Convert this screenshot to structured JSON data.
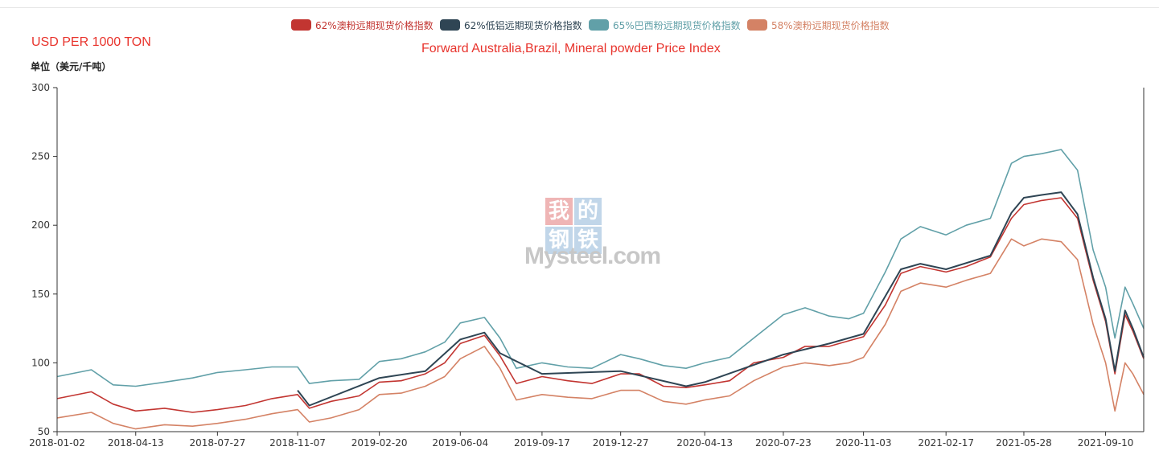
{
  "chart_data": {
    "type": "line",
    "title": "Forward Australia,Brazil, Mineral powder Price Index",
    "unit_en": "USD PER 1000 TON",
    "ylabel": "单位（美元/千吨）",
    "ylim": [
      50,
      300
    ],
    "yticks": [
      "300",
      "250",
      "200",
      "150",
      "100",
      "50"
    ],
    "x_tick_labels": [
      "2018-01-02",
      "2018-04-13",
      "2018-07-27",
      "2018-11-07",
      "2019-02-20",
      "2019-06-04",
      "2019-09-17",
      "2019-12-27",
      "2020-04-13",
      "2020-07-23",
      "2020-11-03",
      "2021-02-17",
      "2021-05-28",
      "2021-09-10"
    ],
    "x_range": [
      "2018-01-02",
      "2021-10-29"
    ],
    "grid": false,
    "legend_position": "top-center",
    "watermark": {
      "line1": "我的",
      "line2": "钢铁",
      "brand": "Mysteel.com"
    },
    "series": [
      {
        "name": "62%澳粉远期现货价格指数",
        "color": "#c23531",
        "x": [
          "2018-01-02",
          "2018-02-15",
          "2018-03-15",
          "2018-04-13",
          "2018-05-20",
          "2018-06-25",
          "2018-07-27",
          "2018-09-01",
          "2018-10-05",
          "2018-11-07",
          "2018-11-22",
          "2018-12-20",
          "2019-01-25",
          "2019-02-20",
          "2019-03-20",
          "2019-04-20",
          "2019-05-15",
          "2019-06-04",
          "2019-07-05",
          "2019-07-25",
          "2019-08-15",
          "2019-09-17",
          "2019-10-20",
          "2019-11-20",
          "2019-12-27",
          "2020-01-20",
          "2020-02-20",
          "2020-03-20",
          "2020-04-13",
          "2020-05-15",
          "2020-06-15",
          "2020-07-23",
          "2020-08-20",
          "2020-09-20",
          "2020-10-15",
          "2020-11-03",
          "2020-12-01",
          "2020-12-21",
          "2021-01-15",
          "2021-02-17",
          "2021-03-15",
          "2021-04-15",
          "2021-05-12",
          "2021-05-28",
          "2021-06-20",
          "2021-07-15",
          "2021-08-05",
          "2021-08-25",
          "2021-09-10",
          "2021-09-22",
          "2021-10-05",
          "2021-10-15",
          "2021-10-29"
        ],
        "values": [
          74,
          79,
          70,
          65,
          67,
          64,
          66,
          69,
          74,
          77,
          67,
          72,
          76,
          86,
          87,
          92,
          100,
          114,
          120,
          105,
          85,
          90,
          87,
          85,
          92,
          92,
          83,
          82,
          84,
          87,
          100,
          104,
          112,
          112,
          116,
          119,
          142,
          165,
          170,
          166,
          170,
          177,
          205,
          215,
          218,
          220,
          205,
          160,
          130,
          92,
          135,
          123,
          103
        ]
      },
      {
        "name": "62%低铝远期现货价格指数",
        "color": "#2f4554",
        "x": [
          "2018-01-02",
          "2018-11-07",
          "2018-11-22",
          "2019-02-20",
          "2019-04-20",
          "2019-06-04",
          "2019-07-05",
          "2019-07-25",
          "2019-09-17",
          "2019-12-27",
          "2020-03-20",
          "2020-04-13",
          "2020-07-23",
          "2020-09-20",
          "2020-11-03",
          "2020-12-21",
          "2021-01-15",
          "2021-02-17",
          "2021-04-15",
          "2021-05-12",
          "2021-05-28",
          "2021-06-20",
          "2021-07-15",
          "2021-08-05",
          "2021-08-25",
          "2021-09-10",
          "2021-09-22",
          "2021-10-05",
          "2021-10-15",
          "2021-10-29"
        ],
        "values": [
          null,
          80,
          69,
          89,
          94,
          117,
          122,
          107,
          92,
          94,
          83,
          86,
          106,
          114,
          121,
          168,
          172,
          168,
          178,
          209,
          220,
          222,
          224,
          208,
          162,
          132,
          94,
          138,
          125,
          104
        ]
      },
      {
        "name": "65%巴西粉远期现货价格指数",
        "color": "#61a0a8",
        "x": [
          "2018-01-02",
          "2018-02-15",
          "2018-03-15",
          "2018-04-13",
          "2018-05-20",
          "2018-06-25",
          "2018-07-27",
          "2018-09-01",
          "2018-10-05",
          "2018-11-07",
          "2018-11-22",
          "2018-12-20",
          "2019-01-25",
          "2019-02-20",
          "2019-03-20",
          "2019-04-20",
          "2019-05-15",
          "2019-06-04",
          "2019-07-05",
          "2019-07-25",
          "2019-08-15",
          "2019-09-17",
          "2019-10-20",
          "2019-11-20",
          "2019-12-27",
          "2020-01-20",
          "2020-02-20",
          "2020-03-20",
          "2020-04-13",
          "2020-05-15",
          "2020-06-15",
          "2020-07-23",
          "2020-08-20",
          "2020-09-20",
          "2020-10-15",
          "2020-11-03",
          "2020-12-01",
          "2020-12-21",
          "2021-01-15",
          "2021-02-17",
          "2021-03-15",
          "2021-04-15",
          "2021-05-12",
          "2021-05-28",
          "2021-06-20",
          "2021-07-15",
          "2021-08-05",
          "2021-08-25",
          "2021-09-10",
          "2021-09-22",
          "2021-10-05",
          "2021-10-15",
          "2021-10-29"
        ],
        "values": [
          90,
          95,
          84,
          83,
          86,
          89,
          93,
          95,
          97,
          97,
          85,
          87,
          88,
          101,
          103,
          108,
          115,
          129,
          133,
          118,
          96,
          100,
          97,
          96,
          106,
          103,
          98,
          96,
          100,
          104,
          118,
          135,
          140,
          134,
          132,
          136,
          166,
          190,
          199,
          193,
          200,
          205,
          245,
          250,
          252,
          255,
          240,
          182,
          155,
          118,
          155,
          143,
          125
        ]
      },
      {
        "name": "58%澳粉远期现货价格指数",
        "color": "#d48265",
        "x": [
          "2018-01-02",
          "2018-02-15",
          "2018-03-15",
          "2018-04-13",
          "2018-05-20",
          "2018-06-25",
          "2018-07-27",
          "2018-09-01",
          "2018-10-05",
          "2018-11-07",
          "2018-11-22",
          "2018-12-20",
          "2019-01-25",
          "2019-02-20",
          "2019-03-20",
          "2019-04-20",
          "2019-05-15",
          "2019-06-04",
          "2019-07-05",
          "2019-07-25",
          "2019-08-15",
          "2019-09-17",
          "2019-10-20",
          "2019-11-20",
          "2019-12-27",
          "2020-01-20",
          "2020-02-20",
          "2020-03-20",
          "2020-04-13",
          "2020-05-15",
          "2020-06-15",
          "2020-07-23",
          "2020-08-20",
          "2020-09-20",
          "2020-10-15",
          "2020-11-03",
          "2020-12-01",
          "2020-12-21",
          "2021-01-15",
          "2021-02-17",
          "2021-03-15",
          "2021-04-15",
          "2021-05-12",
          "2021-05-28",
          "2021-06-20",
          "2021-07-15",
          "2021-08-05",
          "2021-08-25",
          "2021-09-10",
          "2021-09-22",
          "2021-10-05",
          "2021-10-15",
          "2021-10-29"
        ],
        "values": [
          60,
          64,
          56,
          52,
          55,
          54,
          56,
          59,
          63,
          66,
          57,
          60,
          66,
          77,
          78,
          83,
          90,
          103,
          112,
          96,
          73,
          77,
          75,
          74,
          80,
          80,
          72,
          70,
          73,
          76,
          87,
          97,
          100,
          98,
          100,
          104,
          128,
          152,
          158,
          155,
          160,
          165,
          190,
          185,
          190,
          188,
          175,
          128,
          100,
          65,
          100,
          92,
          77
        ]
      }
    ]
  }
}
